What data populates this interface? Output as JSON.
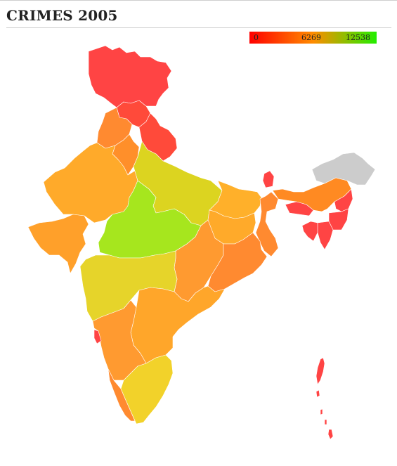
{
  "title": "CRIMES 2005",
  "legend": {
    "ticks": [
      "0",
      "6269",
      "12538"
    ],
    "min": 0,
    "mid": 6269,
    "max": 12538,
    "colors": [
      "#ff0000",
      "#ff8c00",
      "#22ee00"
    ]
  },
  "map_data": {
    "type": "choropleth",
    "nodata_color": "#cccccc",
    "regions": [
      {
        "name": "Jammu and Kashmir",
        "color": "#ff4444"
      },
      {
        "name": "Himachal Pradesh",
        "color": "#ff4a3a"
      },
      {
        "name": "Punjab",
        "color": "#ff8a30"
      },
      {
        "name": "Uttaranchal",
        "color": "#ff4a3a"
      },
      {
        "name": "Haryana",
        "color": "#ff8f2a"
      },
      {
        "name": "Rajasthan",
        "color": "#ffaa2a"
      },
      {
        "name": "Uttar Pradesh",
        "color": "#dcd420"
      },
      {
        "name": "Bihar",
        "color": "#ffb02a"
      },
      {
        "name": "Sikkim",
        "color": "#ff4444"
      },
      {
        "name": "Arunachal Pradesh",
        "color": "#cccccc"
      },
      {
        "name": "Assam",
        "color": "#ff8a22"
      },
      {
        "name": "Meghalaya",
        "color": "#ff4444"
      },
      {
        "name": "Nagaland",
        "color": "#ff4444"
      },
      {
        "name": "Manipur",
        "color": "#ff4444"
      },
      {
        "name": "Mizoram",
        "color": "#ff4444"
      },
      {
        "name": "Tripura",
        "color": "#ff4444"
      },
      {
        "name": "West Bengal",
        "color": "#ff8a30"
      },
      {
        "name": "Jharkhand",
        "color": "#ffaa2a"
      },
      {
        "name": "Gujarat",
        "color": "#ffa02a"
      },
      {
        "name": "Madhya Pradesh",
        "color": "#a6e61e"
      },
      {
        "name": "Chhattisgarh",
        "color": "#ff9a30"
      },
      {
        "name": "Orissa",
        "color": "#ff8a30"
      },
      {
        "name": "Maharashtra",
        "color": "#e6d42a"
      },
      {
        "name": "Andhra Pradesh",
        "color": "#ffa62a"
      },
      {
        "name": "Karnataka",
        "color": "#ff9a30"
      },
      {
        "name": "Goa",
        "color": "#ff4444"
      },
      {
        "name": "Kerala",
        "color": "#ff8a30"
      },
      {
        "name": "Tamil Nadu",
        "color": "#f2d22a"
      },
      {
        "name": "Andaman and Nicobar",
        "color": "#ff4444"
      }
    ]
  }
}
